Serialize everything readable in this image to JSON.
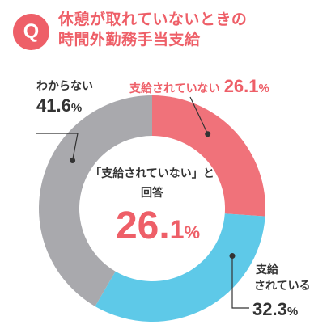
{
  "badge": "Q",
  "title": {
    "line1": "休憩が取れていないときの",
    "line2": "時間外勤務手当支給"
  },
  "center": {
    "caption_line1": "「支給されていない」と",
    "caption_line2": "回答",
    "value_int": "26.",
    "value_dec": "1",
    "value_pct": "%"
  },
  "labels": {
    "unpaid": {
      "name": "支給されていない",
      "num": "26.1",
      "pct": "%"
    },
    "paid": {
      "name_line1": "支給",
      "name_line2": "されている",
      "num": "32.3",
      "pct": "%"
    },
    "unknown": {
      "name": "わからない",
      "num": "41.6",
      "pct": "%"
    }
  },
  "colors": {
    "unpaid": "#f0727a",
    "paid": "#5ec9e8",
    "unknown": "#a9a9ad",
    "accent": "#ee5f68"
  },
  "chart_data": {
    "type": "pie",
    "variant": "donut",
    "title": "休憩が取れていないときの時間外勤務手当支給",
    "categories": [
      "支給されていない",
      "支給されている",
      "わからない"
    ],
    "values": [
      26.1,
      32.3,
      41.6
    ],
    "unit": "%",
    "start_angle": "12 o'clock, clockwise",
    "center_label": "「支給されていない」と回答 26.1%"
  }
}
